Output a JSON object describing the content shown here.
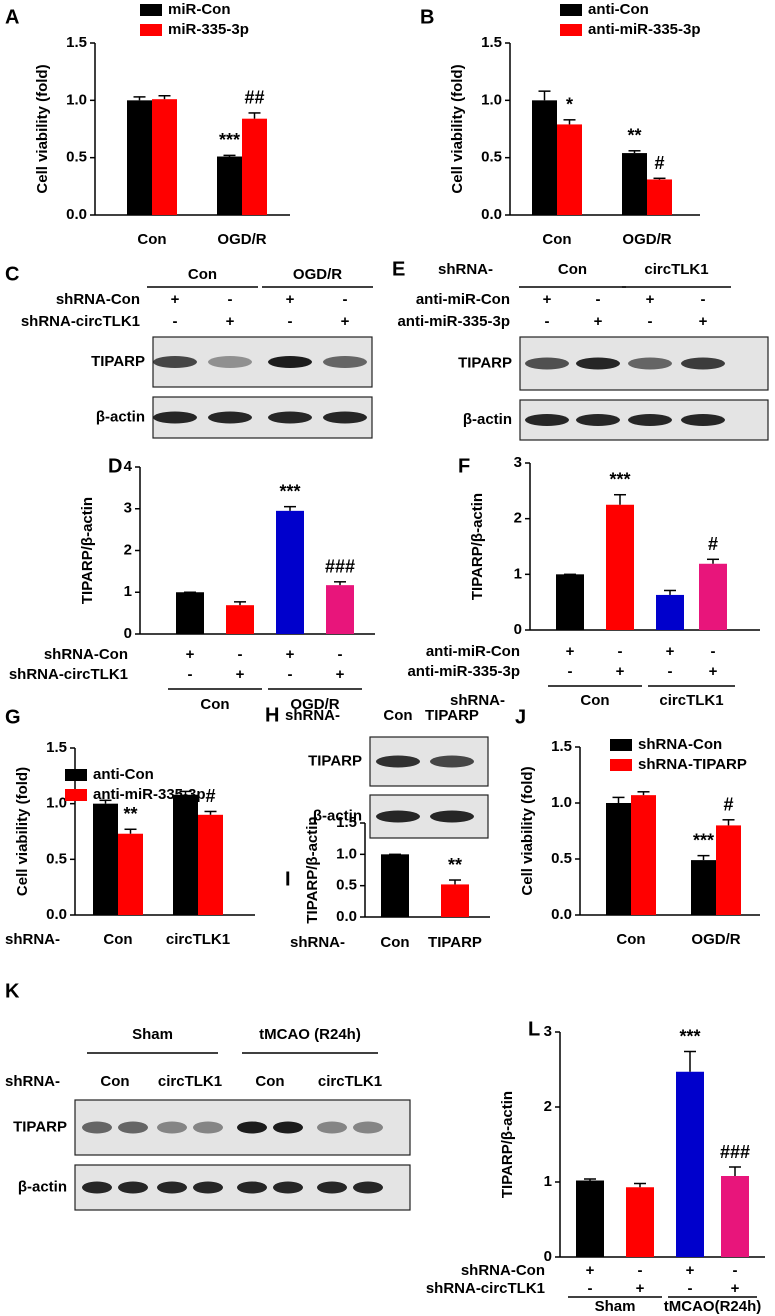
{
  "panels": [
    "A",
    "B",
    "C",
    "D",
    "E",
    "F",
    "G",
    "H",
    "I",
    "J",
    "K",
    "L"
  ],
  "chart_data": [
    {
      "type": "bar",
      "ylabel": "Cell viability (fold)",
      "categories": [
        "Con",
        "OGD/R"
      ],
      "series": [
        {
          "name": "miR-Con",
          "color": "#000000",
          "values": [
            1.0,
            0.51
          ],
          "errors": [
            0.03,
            0.01
          ]
        },
        {
          "name": "miR-335-3p",
          "color": "#ff0000",
          "values": [
            1.01,
            0.84
          ],
          "errors": [
            0.03,
            0.05
          ]
        }
      ],
      "ylim": [
        0,
        1.5
      ],
      "yticks": [
        {
          "value": 0,
          "label": "0.0"
        },
        0.5,
        {
          "value": 1,
          "label": "1.0"
        },
        1.5
      ],
      "annotations": [
        {
          "series": 0,
          "index": 1,
          "text": "***"
        },
        {
          "series": 1,
          "index": 1,
          "text": "##"
        }
      ]
    },
    {
      "type": "bar",
      "ylabel": "Cell viability (fold)",
      "categories": [
        "Con",
        "OGD/R"
      ],
      "series": [
        {
          "name": "anti-Con",
          "color": "#000000",
          "values": [
            1.0,
            0.54
          ],
          "errors": [
            0.08,
            0.02
          ]
        },
        {
          "name": "anti-miR-335-3p",
          "color": "#ff0000",
          "values": [
            0.79,
            0.31
          ],
          "errors": [
            0.04,
            0.01
          ]
        }
      ],
      "ylim": [
        0,
        1.5
      ],
      "yticks": [
        {
          "value": 0,
          "label": "0.0"
        },
        0.5,
        {
          "value": 1,
          "label": "1.0"
        },
        1.5
      ],
      "annotations": [
        {
          "series": 1,
          "index": 0,
          "text": "*"
        },
        {
          "series": 0,
          "index": 1,
          "text": "**"
        },
        {
          "series": 1,
          "index": 1,
          "text": "#"
        }
      ]
    },
    {
      "type": "bar",
      "ylabel": "TIPARP/β-actin",
      "series": [
        {
          "colors": [
            "#000000",
            "#ff0000",
            "#0000cc",
            "#e8157b"
          ],
          "values": [
            1.0,
            0.69,
            2.95,
            1.17
          ],
          "errors": [
            0,
            0.08,
            0.1,
            0.08
          ]
        }
      ],
      "ylim": [
        0,
        4
      ],
      "yticks": [
        0,
        1,
        2,
        3,
        4
      ],
      "annotations": [
        {
          "series": 0,
          "index": 2,
          "text": "***"
        },
        {
          "series": 0,
          "index": 3,
          "text": "###"
        }
      ],
      "treatments": [
        {
          "label": "shRNA-Con",
          "signs": [
            "+",
            "-",
            "+",
            "-"
          ]
        },
        {
          "label": "shRNA-circTLK1",
          "signs": [
            "-",
            "+",
            "-",
            "+"
          ]
        }
      ],
      "groups": [
        {
          "label": "Con",
          "span": 2
        },
        {
          "label": "OGD/R",
          "span": 2
        }
      ]
    },
    {
      "type": "bar",
      "ylabel": "TIPARP/β-actin",
      "series": [
        {
          "colors": [
            "#000000",
            "#ff0000",
            "#0000cc",
            "#e8157b"
          ],
          "values": [
            1.0,
            2.25,
            0.63,
            1.19
          ],
          "errors": [
            0,
            0.18,
            0.08,
            0.08
          ]
        }
      ],
      "ylim": [
        0,
        3
      ],
      "yticks": [
        0,
        1,
        2,
        3
      ],
      "annotations": [
        {
          "series": 0,
          "index": 1,
          "text": "***"
        },
        {
          "series": 0,
          "index": 3,
          "text": "#"
        }
      ],
      "treatments": [
        {
          "label": "anti-miR-Con",
          "signs": [
            "+",
            "-",
            "+",
            "-"
          ]
        },
        {
          "label": "anti-miR-335-3p",
          "signs": [
            "-",
            "+",
            "-",
            "+"
          ]
        }
      ],
      "group_prefix": "shRNA-",
      "groups": [
        {
          "label": "Con",
          "span": 2
        },
        {
          "label": "circTLK1",
          "span": 2
        }
      ]
    },
    {
      "type": "bar",
      "ylabel": "Cell viability (fold)",
      "categories": [
        "Con",
        "circTLK1"
      ],
      "category_prefix": "shRNA-",
      "series": [
        {
          "name": "anti-Con",
          "color": "#000000",
          "values": [
            1.0,
            1.08
          ],
          "errors": [
            0.03,
            0.03
          ]
        },
        {
          "name": "anti-miR-335-3p",
          "color": "#ff0000",
          "values": [
            0.73,
            0.9
          ],
          "errors": [
            0.04,
            0.03
          ]
        }
      ],
      "ylim": [
        0,
        1.5
      ],
      "yticks": [
        {
          "value": 0,
          "label": "0.0"
        },
        0.5,
        {
          "value": 1,
          "label": "1.0"
        },
        1.5
      ],
      "annotations": [
        {
          "series": 1,
          "index": 0,
          "text": "**"
        },
        {
          "series": 1,
          "index": 1,
          "text": "#"
        }
      ]
    },
    {
      "type": "bar",
      "ylabel": "TIPARP/β-actin",
      "categories": [
        "Con",
        "TIPARP"
      ],
      "category_prefix": "shRNA-",
      "series": [
        {
          "colors": [
            "#000000",
            "#ff0000"
          ],
          "values": [
            1.0,
            0.52
          ],
          "errors": [
            0,
            0.07
          ]
        }
      ],
      "ylim": [
        0,
        1.5
      ],
      "yticks": [
        {
          "value": 0,
          "label": "0.0"
        },
        0.5,
        {
          "value": 1,
          "label": "1.0"
        },
        1.5
      ],
      "annotations": [
        {
          "series": 0,
          "index": 1,
          "text": "**"
        }
      ]
    },
    {
      "type": "bar",
      "ylabel": "Cell viability (fold)",
      "categories": [
        "Con",
        "OGD/R"
      ],
      "series": [
        {
          "name": "shRNA-Con",
          "color": "#000000",
          "values": [
            1.0,
            0.49
          ],
          "errors": [
            0.05,
            0.04
          ]
        },
        {
          "name": "shRNA-TIPARP",
          "color": "#ff0000",
          "values": [
            1.07,
            0.8
          ],
          "errors": [
            0.03,
            0.05
          ]
        }
      ],
      "ylim": [
        0,
        1.5
      ],
      "yticks": [
        {
          "value": 0,
          "label": "0.0"
        },
        0.5,
        {
          "value": 1,
          "label": "1.0"
        },
        1.5
      ],
      "annotations": [
        {
          "series": 0,
          "index": 1,
          "text": "***"
        },
        {
          "series": 1,
          "index": 1,
          "text": "#"
        }
      ]
    },
    {
      "type": "bar",
      "ylabel": "TIPARP/β-actin",
      "series": [
        {
          "colors": [
            "#000000",
            "#ff0000",
            "#0000cc",
            "#e8157b"
          ],
          "values": [
            1.02,
            0.93,
            2.47,
            1.08
          ],
          "errors": [
            0.02,
            0.05,
            0.27,
            0.12
          ]
        }
      ],
      "ylim": [
        0,
        3
      ],
      "yticks": [
        0,
        1,
        2,
        3
      ],
      "annotations": [
        {
          "series": 0,
          "index": 2,
          "text": "***"
        },
        {
          "series": 0,
          "index": 3,
          "text": "###"
        }
      ],
      "treatments": [
        {
          "label": "shRNA-Con",
          "signs": [
            "+",
            "-",
            "+",
            "-"
          ]
        },
        {
          "label": "shRNA-circTLK1",
          "signs": [
            "-",
            "+",
            "-",
            "+"
          ]
        }
      ],
      "groups": [
        {
          "label": "Sham",
          "span": 2
        },
        {
          "label": "tMCAO(R24h)",
          "span": 2
        }
      ]
    }
  ],
  "blots": [
    {
      "groups": [
        {
          "label": "Con",
          "span": 2
        },
        {
          "label": "OGD/R",
          "span": 2
        }
      ],
      "treatments": [
        {
          "label": "shRNA-Con",
          "signs": [
            "+",
            "-",
            "+",
            "-"
          ]
        },
        {
          "label": "shRNA-circTLK1",
          "signs": [
            "-",
            "+",
            "-",
            "+"
          ]
        }
      ],
      "bands": [
        "TIPARP",
        "β-actin"
      ]
    },
    {
      "prefix": "shRNA-",
      "groups": [
        {
          "label": "Con",
          "span": 2
        },
        {
          "label": "circTLK1",
          "span": 2
        }
      ],
      "treatments": [
        {
          "label": "anti-miR-Con",
          "signs": [
            "+",
            "-",
            "+",
            "-"
          ]
        },
        {
          "label": "anti-miR-335-3p",
          "signs": [
            "-",
            "+",
            "-",
            "+"
          ]
        }
      ],
      "bands": [
        "TIPARP",
        "β-actin"
      ]
    },
    {
      "prefix": "shRNA-",
      "lanes": [
        "Con",
        "TIPARP"
      ],
      "bands": [
        "TIPARP",
        "β-actin"
      ]
    },
    {
      "groups": [
        {
          "label": "Sham",
          "span": 2
        },
        {
          "label": "tMCAO (R24h)",
          "span": 2
        }
      ],
      "prefix": "shRNA-",
      "lanes": [
        "Con",
        "circTLK1",
        "Con",
        "circTLK1"
      ],
      "bands": [
        "TIPARP",
        "β-actin"
      ]
    }
  ]
}
